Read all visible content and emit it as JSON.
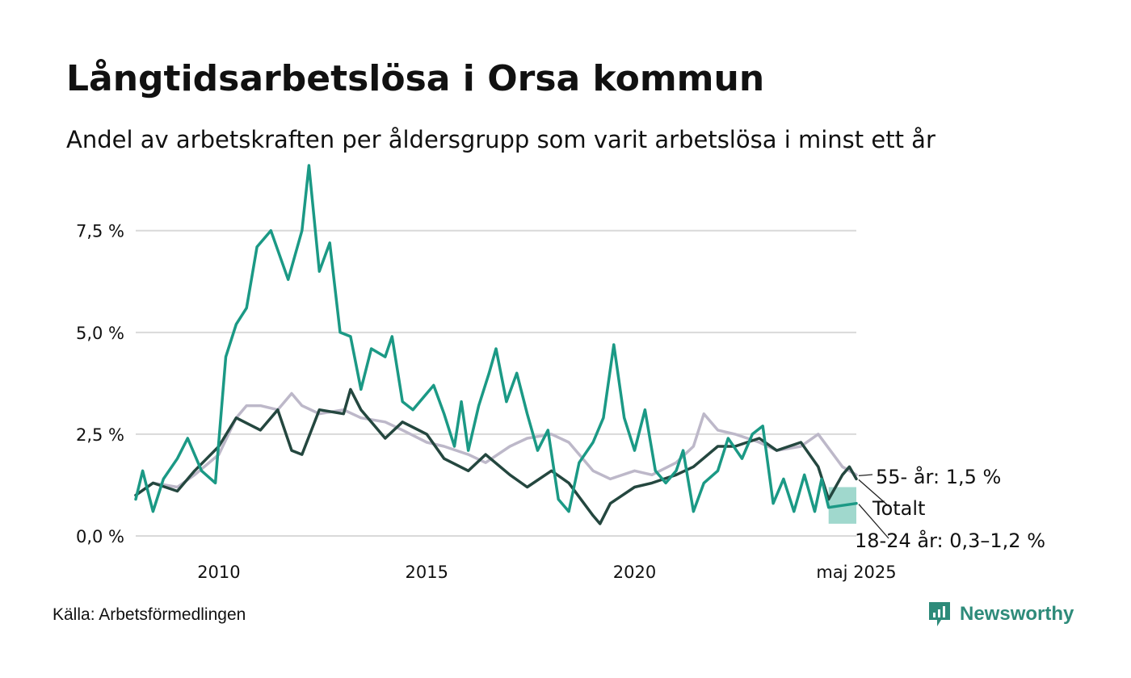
{
  "header": {
    "title": "Långtidsarbetslösa i Orsa kommun",
    "subtitle": "Andel av arbetskraften per åldersgrupp som varit arbetslösa i minst ett år"
  },
  "footer": {
    "source": "Källa: Arbetsförmedlingen",
    "brand": "Newsworthy",
    "brand_icon": "newsworthy-logo-icon"
  },
  "colors": {
    "youth": "#1b9985",
    "total": "#24473f",
    "senior": "#bdb8c9",
    "band": "#8fd1c4",
    "grid": "#d9d9d9"
  },
  "chart_data": {
    "type": "line",
    "title": "Långtidsarbetslösa i Orsa kommun",
    "subtitle": "Andel av arbetskraften per åldersgrupp som varit arbetslösa i minst ett år",
    "xlabel": "",
    "ylabel": "",
    "xlim": [
      "2008-01",
      "2025-05"
    ],
    "ylim": [
      0,
      9.2
    ],
    "grid": true,
    "legend": "direct labels at line ends",
    "x_ticks": [
      {
        "x": "2010-01",
        "label": "2010"
      },
      {
        "x": "2015-01",
        "label": "2015"
      },
      {
        "x": "2020-01",
        "label": "2020"
      },
      {
        "x": "2025-05",
        "label": "maj 2025"
      }
    ],
    "y_ticks": [
      {
        "y": 0,
        "label": "0,0 %"
      },
      {
        "y": 2.5,
        "label": "2,5 %"
      },
      {
        "y": 5,
        "label": "5,0 %"
      },
      {
        "y": 7.5,
        "label": "7,5 %"
      }
    ],
    "end_labels": [
      {
        "series": "senior",
        "text": "55- år: 1,5 %"
      },
      {
        "series": "total",
        "text": "Totalt"
      },
      {
        "series": "youth",
        "text": "18-24 år: 0,3–1,2 %"
      }
    ],
    "series": [
      {
        "key": "senior",
        "name": "55- år",
        "color": "#bdb8c9",
        "points": [
          [
            "2008-01",
            1.0
          ],
          [
            "2008-06",
            1.3
          ],
          [
            "2009-01",
            1.2
          ],
          [
            "2009-06",
            1.5
          ],
          [
            "2010-01",
            2.0
          ],
          [
            "2010-06",
            2.9
          ],
          [
            "2010-09",
            3.2
          ],
          [
            "2011-01",
            3.2
          ],
          [
            "2011-06",
            3.1
          ],
          [
            "2011-10",
            3.5
          ],
          [
            "2012-01",
            3.2
          ],
          [
            "2012-06",
            3.0
          ],
          [
            "2013-01",
            3.1
          ],
          [
            "2013-06",
            2.9
          ],
          [
            "2014-01",
            2.8
          ],
          [
            "2014-06",
            2.6
          ],
          [
            "2015-01",
            2.3
          ],
          [
            "2015-06",
            2.2
          ],
          [
            "2016-01",
            2.0
          ],
          [
            "2016-06",
            1.8
          ],
          [
            "2017-01",
            2.2
          ],
          [
            "2017-06",
            2.4
          ],
          [
            "2018-01",
            2.5
          ],
          [
            "2018-06",
            2.3
          ],
          [
            "2019-01",
            1.6
          ],
          [
            "2019-06",
            1.4
          ],
          [
            "2020-01",
            1.6
          ],
          [
            "2020-06",
            1.5
          ],
          [
            "2021-01",
            1.8
          ],
          [
            "2021-06",
            2.2
          ],
          [
            "2021-09",
            3.0
          ],
          [
            "2022-01",
            2.6
          ],
          [
            "2022-06",
            2.5
          ],
          [
            "2023-01",
            2.3
          ],
          [
            "2023-06",
            2.1
          ],
          [
            "2024-01",
            2.2
          ],
          [
            "2024-06",
            2.5
          ],
          [
            "2025-01",
            1.7
          ],
          [
            "2025-05",
            1.5
          ]
        ]
      },
      {
        "key": "total",
        "name": "Totalt",
        "color": "#24473f",
        "points": [
          [
            "2008-01",
            1.0
          ],
          [
            "2008-06",
            1.3
          ],
          [
            "2009-01",
            1.1
          ],
          [
            "2009-06",
            1.6
          ],
          [
            "2010-01",
            2.2
          ],
          [
            "2010-06",
            2.9
          ],
          [
            "2011-01",
            2.6
          ],
          [
            "2011-06",
            3.1
          ],
          [
            "2011-10",
            2.1
          ],
          [
            "2012-01",
            2.0
          ],
          [
            "2012-06",
            3.1
          ],
          [
            "2013-01",
            3.0
          ],
          [
            "2013-03",
            3.6
          ],
          [
            "2013-06",
            3.1
          ],
          [
            "2014-01",
            2.4
          ],
          [
            "2014-06",
            2.8
          ],
          [
            "2015-01",
            2.5
          ],
          [
            "2015-06",
            1.9
          ],
          [
            "2016-01",
            1.6
          ],
          [
            "2016-06",
            2.0
          ],
          [
            "2017-01",
            1.5
          ],
          [
            "2017-06",
            1.2
          ],
          [
            "2018-01",
            1.6
          ],
          [
            "2018-06",
            1.3
          ],
          [
            "2019-01",
            0.5
          ],
          [
            "2019-03",
            0.3
          ],
          [
            "2019-06",
            0.8
          ],
          [
            "2020-01",
            1.2
          ],
          [
            "2020-06",
            1.3
          ],
          [
            "2021-01",
            1.5
          ],
          [
            "2021-06",
            1.7
          ],
          [
            "2022-01",
            2.2
          ],
          [
            "2022-06",
            2.2
          ],
          [
            "2023-01",
            2.4
          ],
          [
            "2023-06",
            2.1
          ],
          [
            "2024-01",
            2.3
          ],
          [
            "2024-06",
            1.7
          ],
          [
            "2024-09",
            0.9
          ],
          [
            "2025-01",
            1.5
          ],
          [
            "2025-03",
            1.7
          ],
          [
            "2025-05",
            1.4
          ]
        ]
      },
      {
        "key": "youth",
        "name": "18-24 år",
        "color": "#1b9985",
        "points": [
          [
            "2008-01",
            0.9
          ],
          [
            "2008-03",
            1.6
          ],
          [
            "2008-06",
            0.6
          ],
          [
            "2008-09",
            1.4
          ],
          [
            "2009-01",
            1.9
          ],
          [
            "2009-04",
            2.4
          ],
          [
            "2009-08",
            1.6
          ],
          [
            "2009-12",
            1.3
          ],
          [
            "2010-03",
            4.4
          ],
          [
            "2010-06",
            5.2
          ],
          [
            "2010-09",
            5.6
          ],
          [
            "2010-12",
            7.1
          ],
          [
            "2011-04",
            7.5
          ],
          [
            "2011-09",
            6.3
          ],
          [
            "2012-01",
            7.5
          ],
          [
            "2012-03",
            9.1
          ],
          [
            "2012-06",
            6.5
          ],
          [
            "2012-09",
            7.2
          ],
          [
            "2012-12",
            5.0
          ],
          [
            "2013-03",
            4.9
          ],
          [
            "2013-06",
            3.6
          ],
          [
            "2013-09",
            4.6
          ],
          [
            "2014-01",
            4.4
          ],
          [
            "2014-03",
            4.9
          ],
          [
            "2014-06",
            3.3
          ],
          [
            "2014-09",
            3.1
          ],
          [
            "2015-01",
            3.5
          ],
          [
            "2015-03",
            3.7
          ],
          [
            "2015-06",
            3.0
          ],
          [
            "2015-09",
            2.2
          ],
          [
            "2015-11",
            3.3
          ],
          [
            "2016-01",
            2.1
          ],
          [
            "2016-04",
            3.2
          ],
          [
            "2016-07",
            4.0
          ],
          [
            "2016-09",
            4.6
          ],
          [
            "2016-12",
            3.3
          ],
          [
            "2017-03",
            4.0
          ],
          [
            "2017-06",
            3.0
          ],
          [
            "2017-09",
            2.1
          ],
          [
            "2017-12",
            2.6
          ],
          [
            "2018-03",
            0.9
          ],
          [
            "2018-06",
            0.6
          ],
          [
            "2018-09",
            1.8
          ],
          [
            "2019-01",
            2.3
          ],
          [
            "2019-04",
            2.9
          ],
          [
            "2019-07",
            4.7
          ],
          [
            "2019-10",
            2.9
          ],
          [
            "2020-01",
            2.1
          ],
          [
            "2020-04",
            3.1
          ],
          [
            "2020-07",
            1.6
          ],
          [
            "2020-10",
            1.3
          ],
          [
            "2021-01",
            1.6
          ],
          [
            "2021-03",
            2.1
          ],
          [
            "2021-06",
            0.6
          ],
          [
            "2021-09",
            1.3
          ],
          [
            "2022-01",
            1.6
          ],
          [
            "2022-04",
            2.4
          ],
          [
            "2022-08",
            1.9
          ],
          [
            "2022-11",
            2.5
          ],
          [
            "2023-02",
            2.7
          ],
          [
            "2023-05",
            0.8
          ],
          [
            "2023-08",
            1.4
          ],
          [
            "2023-11",
            0.6
          ],
          [
            "2024-02",
            1.5
          ],
          [
            "2024-05",
            0.6
          ],
          [
            "2024-07",
            1.4
          ],
          [
            "2024-09",
            0.7
          ],
          [
            "2025-05",
            0.8
          ]
        ],
        "range_band": {
          "start": "2024-09",
          "end": "2025-05",
          "low": 0.3,
          "high": 1.2
        }
      }
    ]
  }
}
